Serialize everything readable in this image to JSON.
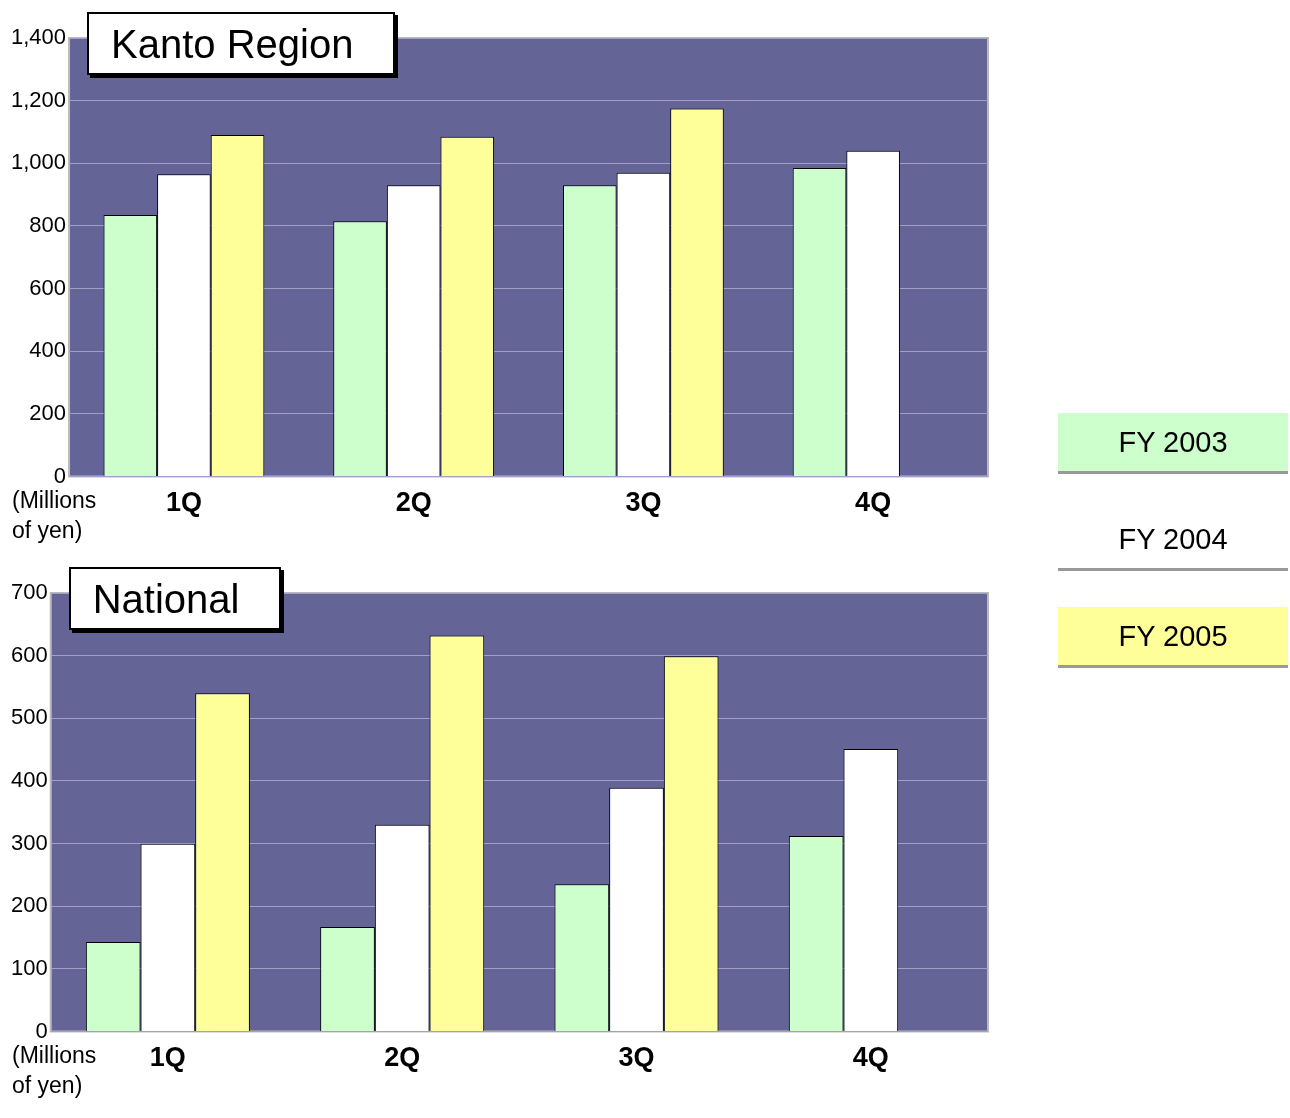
{
  "chart_data": [
    {
      "type": "bar",
      "title": "Kanto Region",
      "ylabel": "(Millions of yen)",
      "categories": [
        "1Q",
        "2Q",
        "3Q",
        "4Q"
      ],
      "series": [
        {
          "name": "FY 2003",
          "color": "#ccffcc",
          "values": [
            835,
            815,
            930,
            985
          ]
        },
        {
          "name": "FY 2004",
          "color": "#ffffff",
          "values": [
            965,
            930,
            970,
            1040
          ]
        },
        {
          "name": "FY 2005",
          "color": "#ffff99",
          "values": [
            1090,
            1085,
            1175,
            null
          ]
        }
      ],
      "ylim": [
        0,
        1400
      ],
      "yticks": [
        0,
        {
          "value": 200,
          "label": "200"
        },
        {
          "value": 400,
          "label": "400"
        },
        {
          "value": 600,
          "label": "600"
        },
        {
          "value": 800,
          "label": "800"
        },
        {
          "value": 1000,
          "label": "1,000"
        },
        {
          "value": 1200,
          "label": "1,200"
        },
        {
          "value": 1400,
          "label": "1,400"
        }
      ],
      "grid": "y",
      "legend": "right"
    },
    {
      "type": "bar",
      "title": "National",
      "ylabel": "(Millions of yen)",
      "categories": [
        "1Q",
        "2Q",
        "3Q",
        "4Q"
      ],
      "series": [
        {
          "color": "#ccffcc",
          "values": [
            143,
            167,
            235,
            312
          ]
        },
        {
          "color": "#ffffff",
          "values": [
            300,
            330,
            389,
            451
          ]
        },
        {
          "color": "#ffff99",
          "values": [
            540,
            632,
            599,
            null
          ]
        }
      ],
      "ylim": [
        0,
        700
      ],
      "yticks": [
        0,
        100,
        200,
        300,
        400,
        500,
        600,
        700
      ],
      "grid": "y"
    }
  ]
}
